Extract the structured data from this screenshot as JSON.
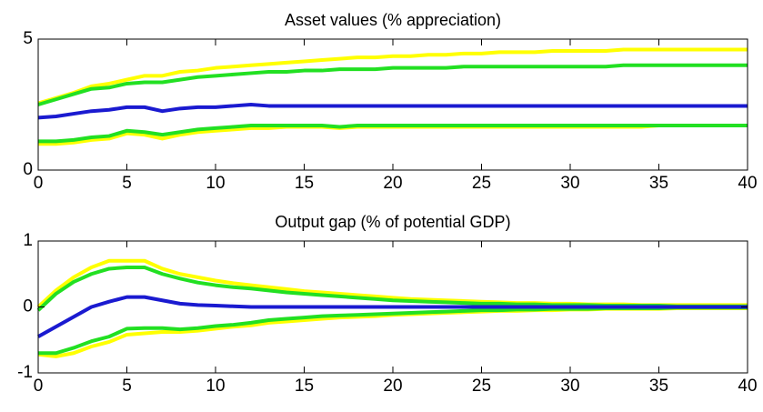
{
  "chart_data": [
    {
      "type": "line",
      "title": "Asset values (% appreciation)",
      "x": [
        0,
        1,
        2,
        3,
        4,
        5,
        6,
        7,
        8,
        9,
        10,
        11,
        12,
        13,
        14,
        15,
        16,
        17,
        18,
        19,
        20,
        21,
        22,
        23,
        24,
        25,
        26,
        27,
        28,
        29,
        30,
        31,
        32,
        33,
        34,
        35,
        36,
        37,
        38,
        39,
        40
      ],
      "xlim": [
        0,
        40
      ],
      "xticks": [
        0,
        5,
        10,
        15,
        20,
        25,
        30,
        35,
        40
      ],
      "ylim": [
        0,
        5
      ],
      "yticks": [
        0,
        5
      ],
      "grid": false,
      "series": [
        {
          "color": "#ffff00",
          "values": [
            2.55,
            2.75,
            2.95,
            3.2,
            3.3,
            3.45,
            3.6,
            3.6,
            3.75,
            3.8,
            3.9,
            3.95,
            4.0,
            4.05,
            4.1,
            4.15,
            4.2,
            4.25,
            4.3,
            4.3,
            4.35,
            4.35,
            4.4,
            4.4,
            4.45,
            4.45,
            4.5,
            4.5,
            4.5,
            4.55,
            4.55,
            4.55,
            4.55,
            4.6,
            4.6,
            4.6,
            4.6,
            4.6,
            4.6,
            4.6,
            4.6
          ]
        },
        {
          "color": "#ffff00",
          "values": [
            1.0,
            1.0,
            1.05,
            1.15,
            1.2,
            1.4,
            1.35,
            1.2,
            1.35,
            1.45,
            1.5,
            1.55,
            1.6,
            1.6,
            1.65,
            1.65,
            1.65,
            1.6,
            1.65,
            1.65,
            1.65,
            1.65,
            1.65,
            1.65,
            1.65,
            1.65,
            1.65,
            1.65,
            1.65,
            1.65,
            1.65,
            1.65,
            1.65,
            1.65,
            1.65,
            1.7,
            1.7,
            1.7,
            1.7,
            1.7,
            1.7
          ]
        },
        {
          "color": "#22e022",
          "values": [
            2.5,
            2.7,
            2.9,
            3.1,
            3.15,
            3.3,
            3.35,
            3.35,
            3.45,
            3.55,
            3.6,
            3.65,
            3.7,
            3.75,
            3.75,
            3.8,
            3.8,
            3.85,
            3.85,
            3.85,
            3.9,
            3.9,
            3.9,
            3.9,
            3.95,
            3.95,
            3.95,
            3.95,
            3.95,
            3.95,
            3.95,
            3.95,
            3.95,
            4.0,
            4.0,
            4.0,
            4.0,
            4.0,
            4.0,
            4.0,
            4.0
          ]
        },
        {
          "color": "#22e022",
          "values": [
            1.1,
            1.1,
            1.15,
            1.25,
            1.3,
            1.5,
            1.45,
            1.35,
            1.45,
            1.55,
            1.6,
            1.65,
            1.7,
            1.7,
            1.7,
            1.7,
            1.7,
            1.65,
            1.7,
            1.7,
            1.7,
            1.7,
            1.7,
            1.7,
            1.7,
            1.7,
            1.7,
            1.7,
            1.7,
            1.7,
            1.7,
            1.7,
            1.7,
            1.7,
            1.7,
            1.7,
            1.7,
            1.7,
            1.7,
            1.7,
            1.7
          ]
        },
        {
          "color": "#1a1ad0",
          "values": [
            2.0,
            2.05,
            2.15,
            2.25,
            2.3,
            2.4,
            2.4,
            2.25,
            2.35,
            2.4,
            2.4,
            2.45,
            2.5,
            2.45,
            2.45,
            2.45,
            2.45,
            2.45,
            2.45,
            2.45,
            2.45,
            2.45,
            2.45,
            2.45,
            2.45,
            2.45,
            2.45,
            2.45,
            2.45,
            2.45,
            2.45,
            2.45,
            2.45,
            2.45,
            2.45,
            2.45,
            2.45,
            2.45,
            2.45,
            2.45,
            2.45
          ]
        }
      ]
    },
    {
      "type": "line",
      "title": "Output gap (% of potential GDP)",
      "x": [
        0,
        1,
        2,
        3,
        4,
        5,
        6,
        7,
        8,
        9,
        10,
        11,
        12,
        13,
        14,
        15,
        16,
        17,
        18,
        19,
        20,
        21,
        22,
        23,
        24,
        25,
        26,
        27,
        28,
        29,
        30,
        31,
        32,
        33,
        34,
        35,
        36,
        37,
        38,
        39,
        40
      ],
      "xlim": [
        0,
        40
      ],
      "xticks": [
        0,
        5,
        10,
        15,
        20,
        25,
        30,
        35,
        40
      ],
      "ylim": [
        -1,
        1
      ],
      "yticks": [
        -1,
        0,
        1
      ],
      "grid": false,
      "series": [
        {
          "color": "#ffff00",
          "values": [
            0,
            0.25,
            0.45,
            0.6,
            0.7,
            0.7,
            0.7,
            0.58,
            0.5,
            0.45,
            0.4,
            0.36,
            0.33,
            0.3,
            0.27,
            0.24,
            0.22,
            0.2,
            0.18,
            0.16,
            0.14,
            0.12,
            0.11,
            0.1,
            0.09,
            0.08,
            0.07,
            0.06,
            0.06,
            0.05,
            0.05,
            0.04,
            0.04,
            0.04,
            0.03,
            0.03,
            0.03,
            0.03,
            0.03,
            0.03,
            0.03
          ]
        },
        {
          "color": "#ffff00",
          "values": [
            -0.72,
            -0.75,
            -0.7,
            -0.6,
            -0.53,
            -0.42,
            -0.4,
            -0.38,
            -0.38,
            -0.36,
            -0.33,
            -0.3,
            -0.28,
            -0.24,
            -0.22,
            -0.2,
            -0.18,
            -0.16,
            -0.15,
            -0.14,
            -0.12,
            -0.11,
            -0.1,
            -0.09,
            -0.08,
            -0.07,
            -0.06,
            -0.06,
            -0.05,
            -0.05,
            -0.04,
            -0.04,
            -0.03,
            -0.03,
            -0.03,
            -0.03,
            -0.02,
            -0.02,
            -0.02,
            -0.02,
            -0.02
          ]
        },
        {
          "color": "#22e022",
          "values": [
            -0.05,
            0.2,
            0.38,
            0.5,
            0.58,
            0.6,
            0.6,
            0.5,
            0.43,
            0.37,
            0.33,
            0.3,
            0.28,
            0.25,
            0.22,
            0.2,
            0.18,
            0.16,
            0.14,
            0.12,
            0.1,
            0.09,
            0.08,
            0.07,
            0.06,
            0.05,
            0.05,
            0.04,
            0.04,
            0.03,
            0.03,
            0.03,
            0.02,
            0.02,
            0.02,
            0.02,
            0.01,
            0.01,
            0.01,
            0.01,
            0.01
          ]
        },
        {
          "color": "#22e022",
          "values": [
            -0.7,
            -0.7,
            -0.62,
            -0.52,
            -0.45,
            -0.33,
            -0.32,
            -0.32,
            -0.34,
            -0.32,
            -0.29,
            -0.27,
            -0.24,
            -0.2,
            -0.18,
            -0.16,
            -0.14,
            -0.13,
            -0.12,
            -0.11,
            -0.1,
            -0.09,
            -0.08,
            -0.07,
            -0.06,
            -0.05,
            -0.05,
            -0.04,
            -0.04,
            -0.03,
            -0.03,
            -0.03,
            -0.02,
            -0.02,
            -0.02,
            -0.02,
            -0.01,
            -0.01,
            -0.01,
            -0.01,
            -0.01
          ]
        },
        {
          "color": "#1a1ad0",
          "values": [
            -0.45,
            -0.3,
            -0.15,
            0,
            0.08,
            0.15,
            0.15,
            0.1,
            0.05,
            0.03,
            0.02,
            0.01,
            0,
            0,
            0,
            0,
            0,
            0,
            0,
            0,
            0,
            0,
            0,
            0,
            0,
            0,
            0,
            0,
            0,
            0,
            0,
            0,
            0,
            0,
            0,
            0,
            0,
            0,
            0,
            0,
            0
          ]
        }
      ]
    }
  ]
}
